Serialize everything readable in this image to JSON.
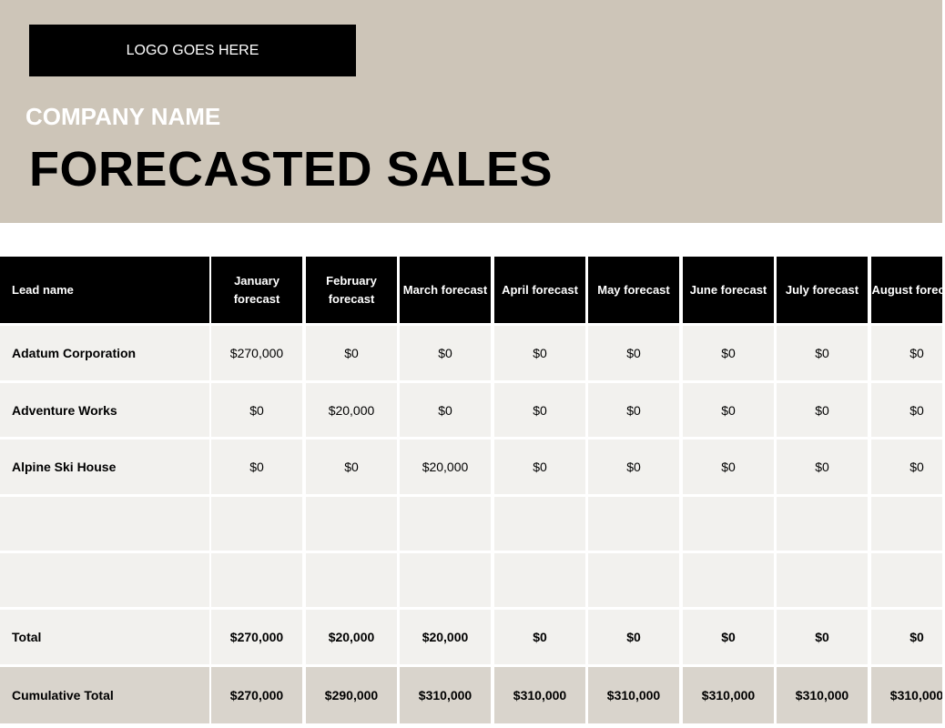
{
  "header": {
    "logo": "LOGO GOES HERE",
    "company": "COMPANY NAME",
    "title": "FORECASTED SALES"
  },
  "table": {
    "headers": [
      "Lead name",
      "January forecast",
      "February forecast",
      "March forecast",
      "April forecast",
      "May forecast",
      "June forecast",
      "July forecast",
      "August forecast"
    ],
    "rows": [
      [
        "Adatum Corporation",
        "$270,000",
        "$0",
        "$0",
        "$0",
        "$0",
        "$0",
        "$0",
        "$0"
      ],
      [
        "Adventure Works",
        "$0",
        "$20,000",
        "$0",
        "$0",
        "$0",
        "$0",
        "$0",
        "$0"
      ],
      [
        "Alpine Ski House",
        "$0",
        "$0",
        "$20,000",
        "$0",
        "$0",
        "$0",
        "$0",
        "$0"
      ]
    ],
    "total": [
      "Total",
      "$270,000",
      "$20,000",
      "$20,000",
      "$0",
      "$0",
      "$0",
      "$0",
      "$0"
    ],
    "cumulative": [
      "Cumulative Total",
      "$270,000",
      "$290,000",
      "$310,000",
      "$310,000",
      "$310,000",
      "$310,000",
      "$310,000",
      "$310,000"
    ]
  }
}
